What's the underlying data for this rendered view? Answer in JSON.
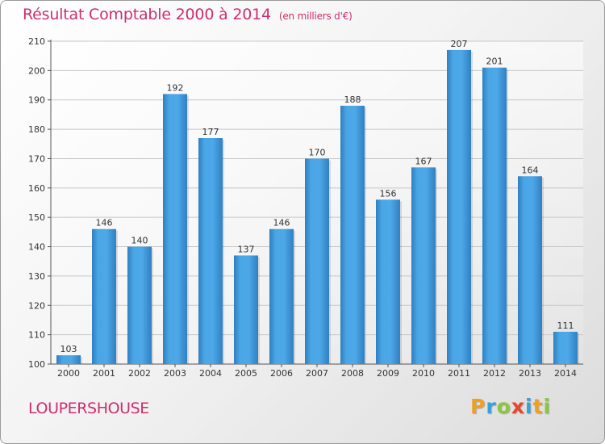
{
  "title": "Résultat Comptable 2000 à 2014",
  "unit": "(en milliers d'€)",
  "commune": "LOUPERSHOUSE",
  "logo": {
    "letters": [
      "P",
      "r",
      "o",
      "x",
      "i",
      "t",
      "i"
    ],
    "colors": [
      "#f0a020",
      "#3aa0d8",
      "#8cc63f",
      "#e8452c",
      "#3aa0d8",
      "#f0a020",
      "#8cc63f"
    ]
  },
  "colors": {
    "accent": "#cc2f6e",
    "bar": "#3f9ad9"
  },
  "chart_data": {
    "type": "bar",
    "categories": [
      "2000",
      "2001",
      "2002",
      "2003",
      "2004",
      "2005",
      "2006",
      "2007",
      "2008",
      "2009",
      "2010",
      "2011",
      "2012",
      "2013",
      "2014"
    ],
    "values": [
      103,
      146,
      140,
      192,
      177,
      137,
      146,
      170,
      188,
      156,
      167,
      207,
      201,
      164,
      111
    ],
    "title": "Résultat Comptable 2000 à 2014",
    "xlabel": "",
    "ylabel": "",
    "ylim": [
      100,
      210
    ],
    "yticks": [
      100,
      110,
      120,
      130,
      140,
      150,
      160,
      170,
      180,
      190,
      200,
      210
    ],
    "grid": true,
    "data_labels": true
  }
}
